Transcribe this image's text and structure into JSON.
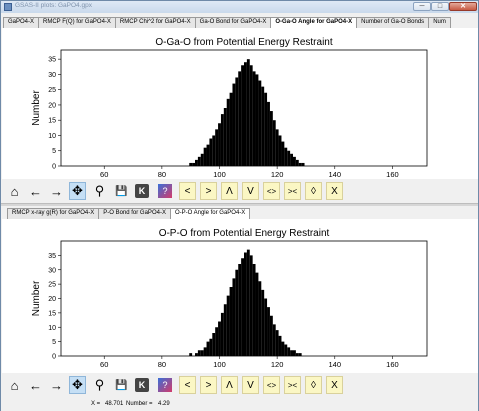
{
  "window": {
    "title": "GSAS-II plots: GaPO4.gpx",
    "minimize": "─",
    "maximize": "□",
    "close": "✕"
  },
  "top_tabs": [
    {
      "label": "GaPO4-X",
      "active": false
    },
    {
      "label": "RMCP F(Q) for GaPO4-X",
      "active": false
    },
    {
      "label": "RMCP Chi^2 for GaPO4-X",
      "active": false
    },
    {
      "label": "Ga-O Bond for GaPO4-X",
      "active": false
    },
    {
      "label": "O-Ga-O Angle for GaPO4-X",
      "active": true
    },
    {
      "label": "Number of Ga-O Bonds",
      "active": false
    },
    {
      "label": "Num",
      "active": false
    }
  ],
  "bottom_tabs": [
    {
      "label": "RMCP x-ray g(R) for GaPO4-X",
      "active": false
    },
    {
      "label": "P-O Bond for GaPO4-X",
      "active": false
    },
    {
      "label": "O-P-O Angle for GaPO4-X",
      "active": true
    }
  ],
  "toolbar": {
    "home": "⌂",
    "back": "←",
    "forward": "→",
    "pan": "✥",
    "zoom": "⚲",
    "save": "💾",
    "k": "K",
    "help": "?",
    "lt": "<",
    "gt": ">",
    "up": "Λ",
    "down": "V",
    "expand": "<>",
    "shrink": "><",
    "vexpand": "◊",
    "vshrink": "X"
  },
  "status": {
    "x_label": "X =",
    "x_value": "48.701",
    "num_label": "Number =",
    "num_value": "4.29"
  },
  "colors": {
    "bars": "#000000",
    "accent": "#c5dff5"
  },
  "chart_data": [
    {
      "type": "bar",
      "title": "O-Ga-O from Potential Energy Restraint",
      "xlabel": "",
      "ylabel": "Number",
      "xlim": [
        45,
        172
      ],
      "ylim": [
        0,
        38
      ],
      "xticks": [
        60,
        80,
        100,
        120,
        140,
        160
      ],
      "yticks": [
        0,
        5,
        10,
        15,
        20,
        25,
        30,
        35
      ],
      "x": [
        90,
        91,
        92,
        93,
        94,
        95,
        96,
        97,
        98,
        99,
        100,
        101,
        102,
        103,
        104,
        105,
        106,
        107,
        108,
        109,
        110,
        111,
        112,
        113,
        114,
        115,
        116,
        117,
        118,
        119,
        120,
        121,
        122,
        123,
        124,
        125,
        126,
        127,
        128,
        129
      ],
      "values": [
        1,
        1,
        2,
        3,
        4,
        6,
        7,
        9,
        10,
        12,
        14,
        17,
        19,
        22,
        24,
        27,
        29,
        31,
        33,
        34,
        35,
        33,
        31,
        30,
        28,
        26,
        24,
        21,
        18,
        15,
        12,
        10,
        8,
        6,
        5,
        4,
        3,
        2,
        1,
        1
      ]
    },
    {
      "type": "bar",
      "title": "O-P-O from Potential Energy Restraint",
      "xlabel": "",
      "ylabel": "Number",
      "xlim": [
        45,
        172
      ],
      "ylim": [
        0,
        40
      ],
      "xticks": [
        60,
        80,
        100,
        120,
        140,
        160
      ],
      "yticks": [
        0,
        5,
        10,
        15,
        20,
        25,
        30,
        35
      ],
      "x": [
        90,
        92,
        93,
        94,
        95,
        96,
        97,
        98,
        99,
        100,
        101,
        102,
        103,
        104,
        105,
        106,
        107,
        108,
        109,
        110,
        111,
        112,
        113,
        114,
        115,
        116,
        117,
        118,
        119,
        120,
        121,
        122,
        123,
        124,
        125,
        126,
        127,
        128
      ],
      "values": [
        1,
        1,
        2,
        2,
        3,
        5,
        6,
        8,
        10,
        12,
        15,
        18,
        21,
        24,
        27,
        30,
        32,
        34,
        36,
        37,
        35,
        32,
        29,
        26,
        23,
        20,
        17,
        14,
        11,
        9,
        7,
        5,
        4,
        3,
        2,
        2,
        1,
        1
      ]
    }
  ]
}
